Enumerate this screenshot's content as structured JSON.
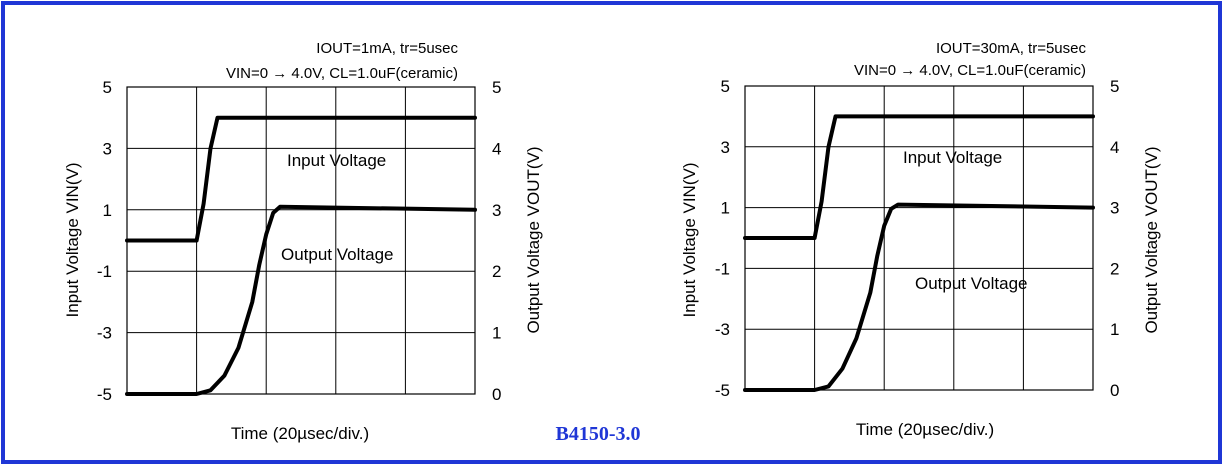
{
  "caption": "B4150-3.0",
  "colors": {
    "frame": "#1f36d6",
    "caption": "#1f36d6",
    "trace": "#000000",
    "grid": "#000000"
  },
  "chart_data": [
    {
      "type": "line",
      "annotation_line1": "IOUT=1mA, tr=5usec",
      "annotation_line2": "VIN=0 → 4.0V, CL=1.0uF(ceramic)",
      "xlabel": "Time (20µsec/div.)",
      "ylabel_left": "Input Voltage VIN(V)",
      "ylabel_right": "Output Voltage VOUT(V)",
      "left_ticks": [
        "5",
        "3",
        "1",
        "-1",
        "-3",
        "-5"
      ],
      "right_ticks": [
        "5",
        "4",
        "3",
        "2",
        "1",
        "0"
      ],
      "ylim_left": [
        -5,
        5
      ],
      "ylim_right": [
        0,
        5
      ],
      "xlim": [
        0,
        100
      ],
      "x_divisions": 5,
      "grid": true,
      "series": [
        {
          "name": "Input Voltage",
          "axis": "left",
          "x": [
            0,
            20,
            22,
            24,
            26,
            100
          ],
          "y": [
            0,
            0,
            1.2,
            3.0,
            4.0,
            4.0
          ]
        },
        {
          "name": "Output Voltage",
          "axis": "right",
          "x": [
            0,
            20,
            24,
            28,
            32,
            36,
            38,
            40,
            42,
            44,
            100
          ],
          "y": [
            0,
            0,
            0.06,
            0.3,
            0.75,
            1.5,
            2.1,
            2.6,
            2.95,
            3.05,
            3.0
          ]
        }
      ]
    },
    {
      "type": "line",
      "annotation_line1": "IOUT=30mA, tr=5usec",
      "annotation_line2": "VIN=0 → 4.0V, CL=1.0uF(ceramic)",
      "xlabel": "Time (20µsec/div.)",
      "ylabel_left": "Input Voltage VIN(V)",
      "ylabel_right": "Output Voltage VOUT(V)",
      "left_ticks": [
        "5",
        "3",
        "1",
        "-1",
        "-3",
        "-5"
      ],
      "right_ticks": [
        "5",
        "4",
        "3",
        "2",
        "1",
        "0"
      ],
      "ylim_left": [
        -5,
        5
      ],
      "ylim_right": [
        0,
        5
      ],
      "xlim": [
        0,
        100
      ],
      "x_divisions": 5,
      "grid": true,
      "series": [
        {
          "name": "Input Voltage",
          "axis": "left",
          "x": [
            0,
            20,
            22,
            24,
            26,
            100
          ],
          "y": [
            0,
            0,
            1.2,
            3.0,
            4.0,
            4.0
          ]
        },
        {
          "name": "Output Voltage",
          "axis": "right",
          "x": [
            0,
            20,
            24,
            28,
            32,
            36,
            38,
            40,
            42,
            44,
            100
          ],
          "y": [
            0,
            0,
            0.06,
            0.35,
            0.85,
            1.6,
            2.2,
            2.7,
            2.98,
            3.05,
            3.0
          ]
        }
      ]
    }
  ]
}
